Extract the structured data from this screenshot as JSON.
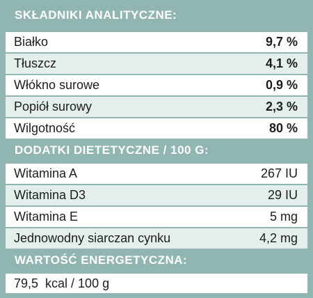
{
  "sections": [
    {
      "header": "SKŁADNIKI ANALITYCZNE:",
      "rows": [
        {
          "label": "Białko",
          "value": "9,7 %"
        },
        {
          "label": "Tłuszcz",
          "value": "4,1 %"
        },
        {
          "label": "Włókno surowe",
          "value": "0,9 %"
        },
        {
          "label": "Popiół surowy",
          "value": "2,3 %"
        },
        {
          "label": "Wilgotność",
          "value": "80 %"
        }
      ]
    },
    {
      "header": "DODATKI DIETETYCZNE / 100 G:",
      "rows": [
        {
          "label": "Witamina A",
          "value": "267 IU"
        },
        {
          "label": "Witamina D3",
          "value": "29 IU"
        },
        {
          "label": "Witamina E",
          "value": "5 mg"
        },
        {
          "label": "Jednowodny siarczan cynku",
          "value": "4,2 mg"
        }
      ]
    },
    {
      "header": "WARTOŚĆ ENERGETYCZNA:",
      "rows": [
        {
          "label": "79,5  kcal / 100 g",
          "value": ""
        }
      ]
    }
  ],
  "colors": {
    "accent": "#91b6b2",
    "row_tint": "#e4eeed",
    "text": "#1d1d1b"
  }
}
